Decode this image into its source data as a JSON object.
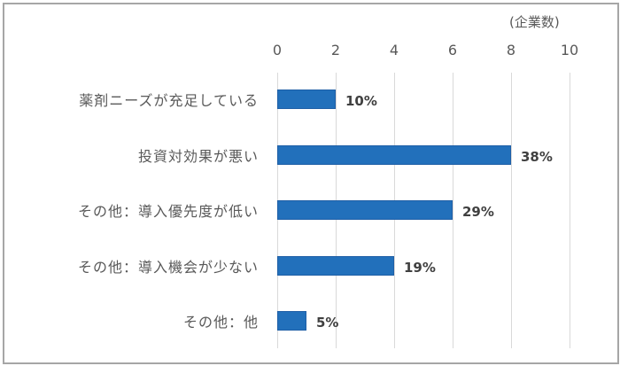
{
  "chart_data": {
    "type": "bar",
    "orientation": "horizontal",
    "title": "",
    "xlabel": "(企業数)",
    "ylabel": "",
    "xlim": [
      0,
      10
    ],
    "x_ticks": [
      "0",
      "2",
      "4",
      "6",
      "8",
      "10"
    ],
    "grid": true,
    "legend": null,
    "categories": [
      "薬剤ニーズが充足している",
      "投資対効果が悪い",
      "その他：導入優先度が低い",
      "その他：導入機会が少ない",
      "その他：他"
    ],
    "values": [
      2,
      8,
      6,
      4,
      1
    ],
    "data_labels": [
      "10%",
      "38%",
      "29%",
      "19%",
      "5%"
    ],
    "bar_color": "#2270bb"
  }
}
